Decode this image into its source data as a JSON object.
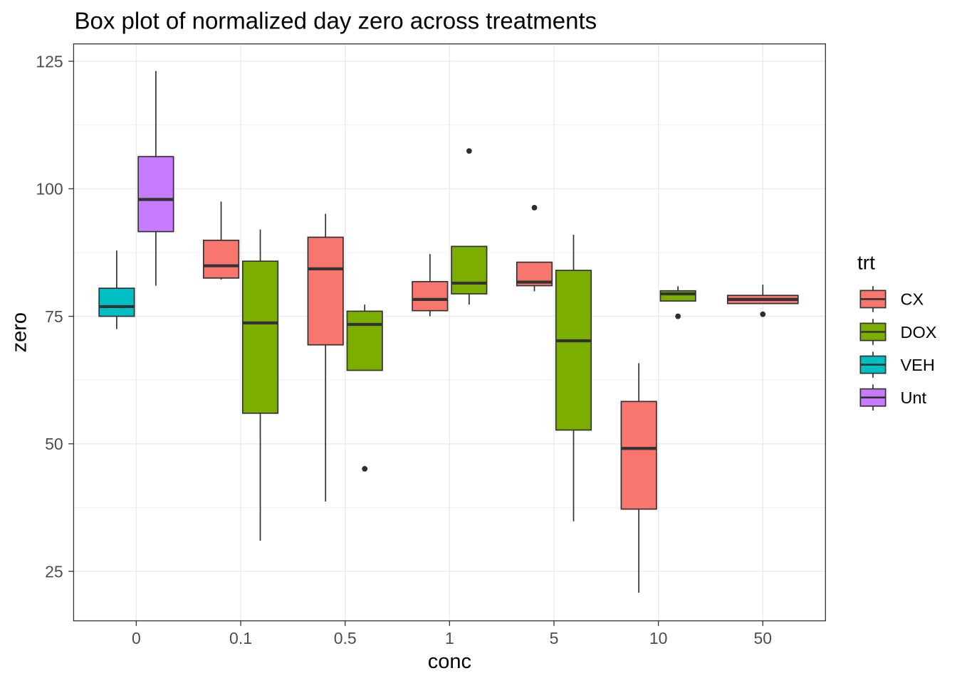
{
  "chart_data": {
    "type": "box",
    "title": "Box plot of normalized day zero across treatments",
    "xlabel": "conc",
    "ylabel": "zero",
    "categories": [
      "0",
      "0.1",
      "0.5",
      "1",
      "5",
      "10",
      "50"
    ],
    "y_ticks": [
      25,
      50,
      75,
      100,
      125
    ],
    "y_minor_ticks": [
      37.5,
      62.5,
      87.5,
      112.5
    ],
    "ylim": [
      15.3,
      128.4
    ],
    "grid": {
      "horizontal": "major+minor",
      "vertical": "major-per-category"
    },
    "legend": {
      "title": "trt",
      "position": "right",
      "entries": [
        {
          "label": "CX",
          "color": "#F8766D"
        },
        {
          "label": "DOX",
          "color": "#7CAE00"
        },
        {
          "label": "VEH",
          "color": "#00BFC4"
        },
        {
          "label": "Unt",
          "color": "#C77CFF"
        }
      ]
    },
    "groups": [
      {
        "x": "0",
        "boxes": [
          {
            "trt": "VEH",
            "lo": 72.5,
            "q1": 75.0,
            "med": 76.9,
            "q3": 80.5,
            "hi": 87.9,
            "outliers": []
          },
          {
            "trt": "Unt",
            "lo": 81.0,
            "q1": 91.6,
            "med": 97.9,
            "q3": 106.3,
            "hi": 123.1,
            "outliers": []
          }
        ]
      },
      {
        "x": "0.1",
        "boxes": [
          {
            "trt": "CX",
            "lo": 82.2,
            "q1": 82.5,
            "med": 84.9,
            "q3": 89.9,
            "hi": 97.5,
            "outliers": []
          },
          {
            "trt": "DOX",
            "lo": 31.0,
            "q1": 56.0,
            "med": 73.7,
            "q3": 85.8,
            "hi": 92.0,
            "outliers": []
          }
        ]
      },
      {
        "x": "0.5",
        "boxes": [
          {
            "trt": "CX",
            "lo": 38.7,
            "q1": 69.4,
            "med": 84.3,
            "q3": 90.5,
            "hi": 95.1,
            "outliers": []
          },
          {
            "trt": "DOX",
            "lo": 64.4,
            "q1": 64.4,
            "med": 73.4,
            "q3": 76.0,
            "hi": 77.3,
            "outliers": [
              45.1
            ]
          }
        ]
      },
      {
        "x": "1",
        "boxes": [
          {
            "trt": "CX",
            "lo": 75.0,
            "q1": 76.1,
            "med": 78.3,
            "q3": 81.8,
            "hi": 87.2,
            "outliers": []
          },
          {
            "trt": "DOX",
            "lo": 77.3,
            "q1": 79.4,
            "med": 81.5,
            "q3": 88.7,
            "hi": 88.7,
            "outliers": [
              107.4
            ]
          }
        ]
      },
      {
        "x": "5",
        "boxes": [
          {
            "trt": "CX",
            "lo": 79.9,
            "q1": 81.0,
            "med": 81.7,
            "q3": 85.6,
            "hi": 85.6,
            "outliers": [
              96.3
            ]
          },
          {
            "trt": "DOX",
            "lo": 34.8,
            "q1": 52.7,
            "med": 70.2,
            "q3": 84.0,
            "hi": 91.0,
            "outliers": []
          }
        ]
      },
      {
        "x": "10",
        "boxes": [
          {
            "trt": "CX",
            "lo": 20.8,
            "q1": 37.2,
            "med": 49.1,
            "q3": 58.3,
            "hi": 65.8,
            "outliers": []
          },
          {
            "trt": "DOX",
            "lo": 78.0,
            "q1": 78.0,
            "med": 79.4,
            "q3": 80.0,
            "hi": 80.9,
            "outliers": [
              75.0
            ]
          }
        ]
      },
      {
        "x": "50",
        "boxes": [
          {
            "trt": "CX",
            "lo": 77.5,
            "q1": 77.5,
            "med": 78.3,
            "q3": 79.1,
            "hi": 81.2,
            "outliers": [
              75.4
            ]
          }
        ]
      }
    ],
    "style": {
      "background": "#FFFFFF",
      "panel_background": "#FFFFFF",
      "panel_border": "#333333",
      "grid_major": "#EBEBEB",
      "grid_minor": "#EBEBEB",
      "box_stroke": "#333333",
      "outlier_color": "#2E2E2E",
      "tick_color": "#333333",
      "tick_label_color": "#4D4D4D",
      "title_color": "#000000",
      "axis_title_color": "#000000",
      "legend_text_color": "#000000"
    }
  }
}
